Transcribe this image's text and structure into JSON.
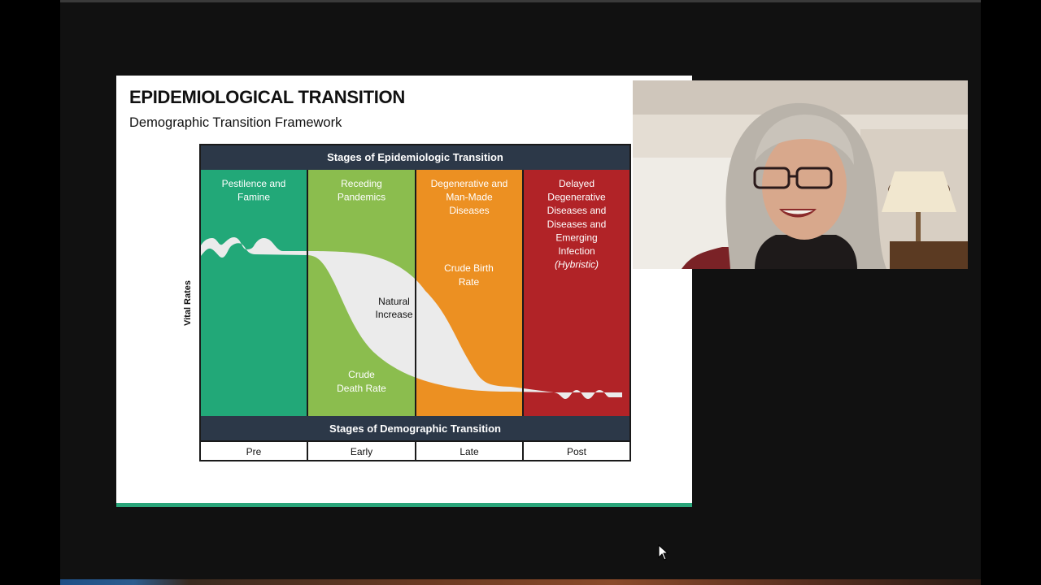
{
  "slide": {
    "title": "EPIDEMIOLOGICAL TRANSITION",
    "subtitle": "Demographic Transition Framework"
  },
  "diagram": {
    "epi_header": "Stages of Epidemiologic Transition",
    "demo_header": "Stages of Demographic Transition",
    "y_axis_label": "Vital Rates",
    "epi_stages": [
      {
        "lines": [
          "Pestilence and",
          "Famine"
        ],
        "color": "#22a878"
      },
      {
        "lines": [
          "Receding",
          "Pandemics"
        ],
        "color": "#8bbd4e"
      },
      {
        "lines": [
          "Degenerative and",
          "Man-Made",
          "Diseases"
        ],
        "color": "#ec9022"
      },
      {
        "lines": [
          "Delayed",
          "Degenerative",
          "Diseases and",
          "Diseases and",
          "Emerging",
          "Infection"
        ],
        "italic_line": "(Hybristic)",
        "color": "#b12327"
      }
    ],
    "demo_stages": [
      "Pre",
      "Early",
      "Late",
      "Post"
    ],
    "labels": {
      "natural_increase": [
        "Natural",
        "Increase"
      ],
      "crude_birth_rate": [
        "Crude Birth",
        "Rate"
      ],
      "crude_death_rate": [
        "Crude",
        "Death Rate"
      ]
    },
    "header_color": "#2c3848"
  },
  "webcam": {}
}
